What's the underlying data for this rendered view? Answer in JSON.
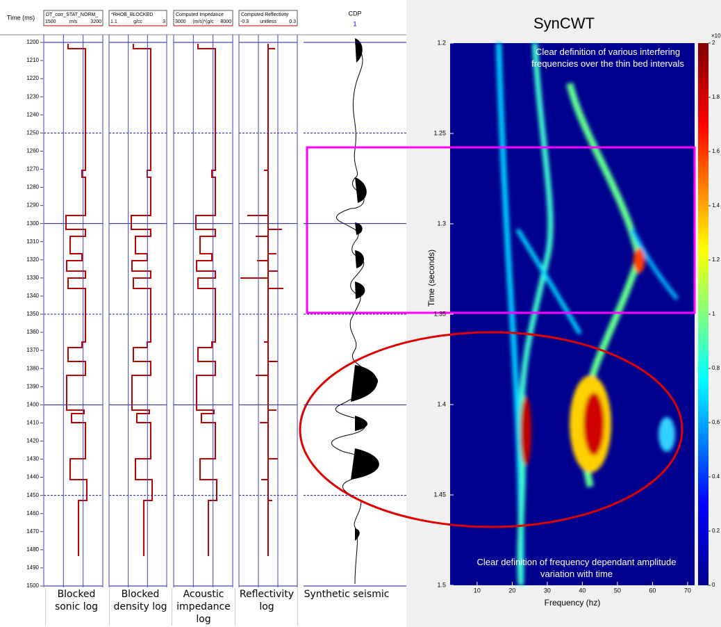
{
  "time_axis": {
    "label": "Time (ms)",
    "ticks": [
      1200,
      1210,
      1220,
      1230,
      1240,
      1250,
      1260,
      1270,
      1280,
      1290,
      1300,
      1310,
      1320,
      1330,
      1340,
      1350,
      1360,
      1370,
      1380,
      1390,
      1400,
      1410,
      1420,
      1430,
      1440,
      1450,
      1460,
      1470,
      1480,
      1490,
      1500
    ],
    "ylim": [
      1200,
      1500
    ]
  },
  "tracks": [
    {
      "name": "DT_corr_STAT_NORM_",
      "min": 1500,
      "unit": "m/s",
      "max": 3200,
      "caption": "Blocked\nsonic log"
    },
    {
      "name": "*RHOB_BLOCKED",
      "min": 1.1,
      "unit": "g/cc",
      "max": 3,
      "caption": "Blocked\ndensity log"
    },
    {
      "name": "Computed Impedance",
      "min": 3000,
      "unit": "(m/s)*(g/c",
      "max": 8000,
      "caption": "Acoustic\nimpedance\nlog"
    },
    {
      "name": "Computed Reflectivity",
      "min": -0.3,
      "unit": "unitless",
      "max": 0.3,
      "caption": "Reflectivity\nlog"
    }
  ],
  "seismic": {
    "header": "CDP",
    "trace": "1",
    "caption": "Synthetic seismic"
  },
  "spectrogram": {
    "title": "SynCWT",
    "xlabel": "Frequency (hz)",
    "ylabel": "Time (seconds)",
    "xlim": [
      2.3,
      72
    ],
    "xticks": [
      10,
      20,
      30,
      40,
      50,
      60,
      70
    ],
    "ylim": [
      1.2,
      1.5
    ],
    "yticks": [
      1.2,
      1.25,
      1.3,
      1.35,
      1.4,
      1.45,
      1.5
    ],
    "colorbar": {
      "lim": [
        0,
        2
      ],
      "ticks": [
        0,
        0.2,
        0.4,
        0.6,
        0.8,
        1,
        1.2,
        1.4,
        1.6,
        1.8,
        2
      ],
      "exponent": "×10"
    },
    "annotations": [
      "Clear definition of various interfering frequencies over the thin bed intervals",
      "Clear definition of frequency dependant amplitude variation with time"
    ]
  }
}
